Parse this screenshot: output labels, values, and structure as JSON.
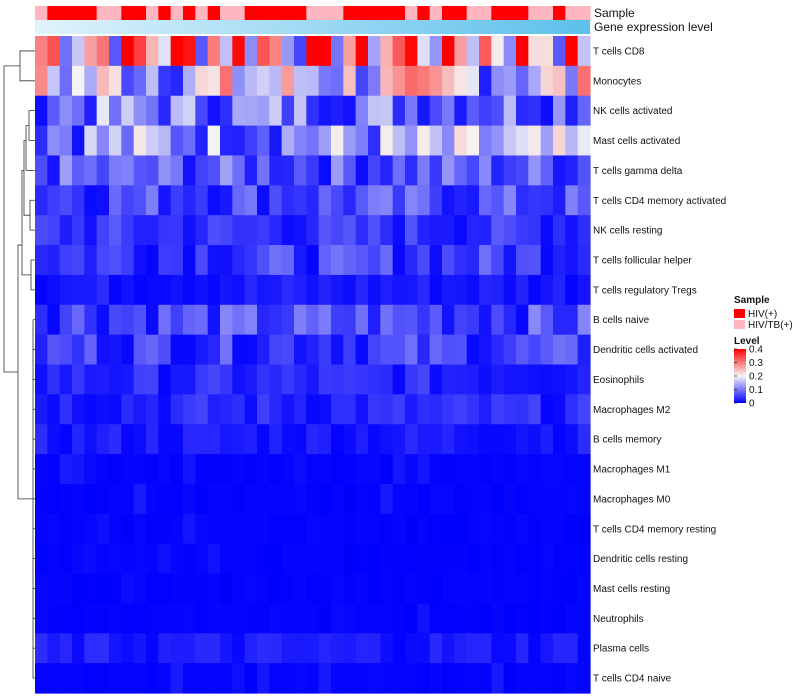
{
  "chart_data": {
    "type": "heatmap",
    "title": "",
    "row_labels": [
      "T cells CD8",
      "Monocytes",
      "NK cells activated",
      "Mast cells activated",
      "T cells gamma delta",
      "T cells CD4 memory activated",
      "NK cells resting",
      "T cells follicular helper",
      "T cells regulatory  Tregs",
      "B cells naive",
      "Dendritic cells activated",
      "Eosinophils",
      "Macrophages M2",
      "B cells memory",
      "Macrophages M1",
      "Macrophages M0",
      "T cells CD4 memory resting",
      "Dendritic cells resting",
      "Mast cells resting",
      "Neutrophils",
      "Plasma cells",
      "T cells CD4 naive"
    ],
    "n_columns": 45,
    "row_mean_levels": [
      0.3,
      0.17,
      0.1,
      0.12,
      0.07,
      0.06,
      0.04,
      0.05,
      0.02,
      0.06,
      0.05,
      0.03,
      0.03,
      0.02,
      0.01,
      0.01,
      0.005,
      0.005,
      0.003,
      0.002,
      0.02,
      0.01
    ],
    "annotation_tracks": [
      {
        "name": "Sample",
        "categories": [
          "HIV(+)",
          "HIV/TB(+)"
        ],
        "colors": [
          "#ff0000",
          "#ffb6c1"
        ],
        "pattern": [
          1,
          0,
          0,
          0,
          0,
          1,
          1,
          0,
          0,
          1,
          0,
          1,
          0,
          1,
          0,
          1,
          1,
          0,
          0,
          0,
          0,
          0,
          1,
          1,
          1,
          0,
          0,
          0,
          0,
          0,
          1,
          0,
          1,
          0,
          0,
          1,
          1,
          0,
          0,
          0,
          1,
          1,
          0,
          1,
          1
        ]
      },
      {
        "name": "Gene expression level",
        "gradient": [
          "#e0f3fb",
          "#5bc0eb"
        ]
      }
    ],
    "legends": {
      "sample": {
        "title": "Sample",
        "entries": [
          {
            "label": "HIV(+)",
            "color": "#ff0000"
          },
          {
            "label": "HIV/TB(+)",
            "color": "#ffb6c1"
          }
        ]
      },
      "level": {
        "title": "Level",
        "ticks": [
          {
            "label": "0.4",
            "value": 0.4
          },
          {
            "label": "0.3",
            "value": 0.3
          },
          {
            "label": "0.2",
            "value": 0.2
          },
          {
            "label": "0.1",
            "value": 0.1
          },
          {
            "label": "0",
            "value": 0
          }
        ],
        "range": [
          0,
          0.4
        ],
        "colors": {
          "low": "#0000ff",
          "mid": "#f5f5f5",
          "high": "#ff0000",
          "mid_value": 0.2
        }
      }
    },
    "dendrogram": "row clustering, left side",
    "legend_position": "right"
  }
}
